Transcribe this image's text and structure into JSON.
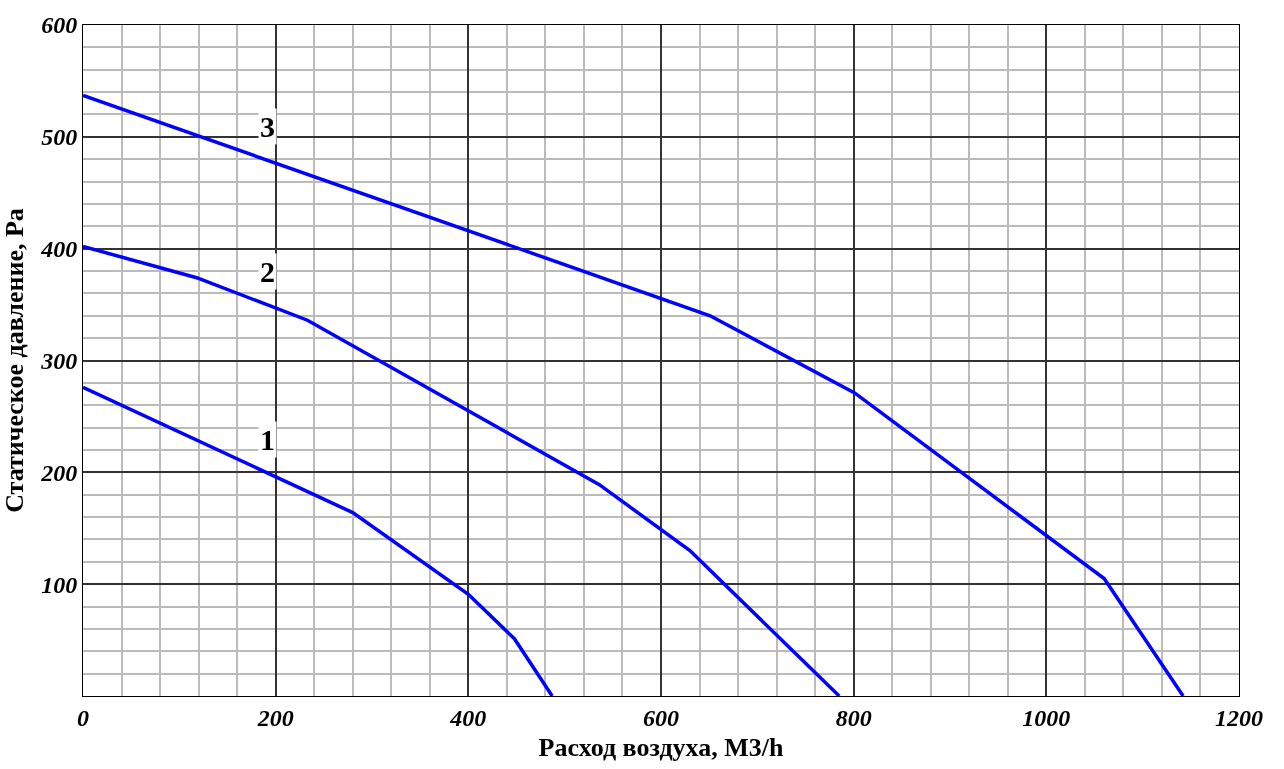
{
  "chart_data": {
    "type": "line",
    "xlabel": "Расход воздуха, М3/h",
    "ylabel": "Статическое давление, Ра",
    "series": [
      {
        "name": "1",
        "color": "#0000ff",
        "x": [
          0,
          280,
          400,
          448,
          487
        ],
        "values": [
          276,
          164,
          91,
          51,
          0
        ]
      },
      {
        "name": "2",
        "color": "#0000ff",
        "x": [
          0,
          118,
          233,
          536,
          630,
          785
        ],
        "values": [
          402,
          374,
          336,
          189,
          130,
          0
        ]
      },
      {
        "name": "3",
        "color": "#0000ff",
        "x": [
          0,
          651,
          801,
          1060,
          1142
        ],
        "values": [
          537,
          340,
          271,
          105,
          0
        ]
      }
    ],
    "xlim": [
      0,
      1200
    ],
    "ylim": [
      0,
      600
    ],
    "xticks": [
      0,
      200,
      400,
      600,
      800,
      1000,
      1200
    ],
    "yticks": [
      100,
      200,
      300,
      400,
      500,
      600
    ],
    "grid": true,
    "marker": "none",
    "line_style": "solid"
  }
}
